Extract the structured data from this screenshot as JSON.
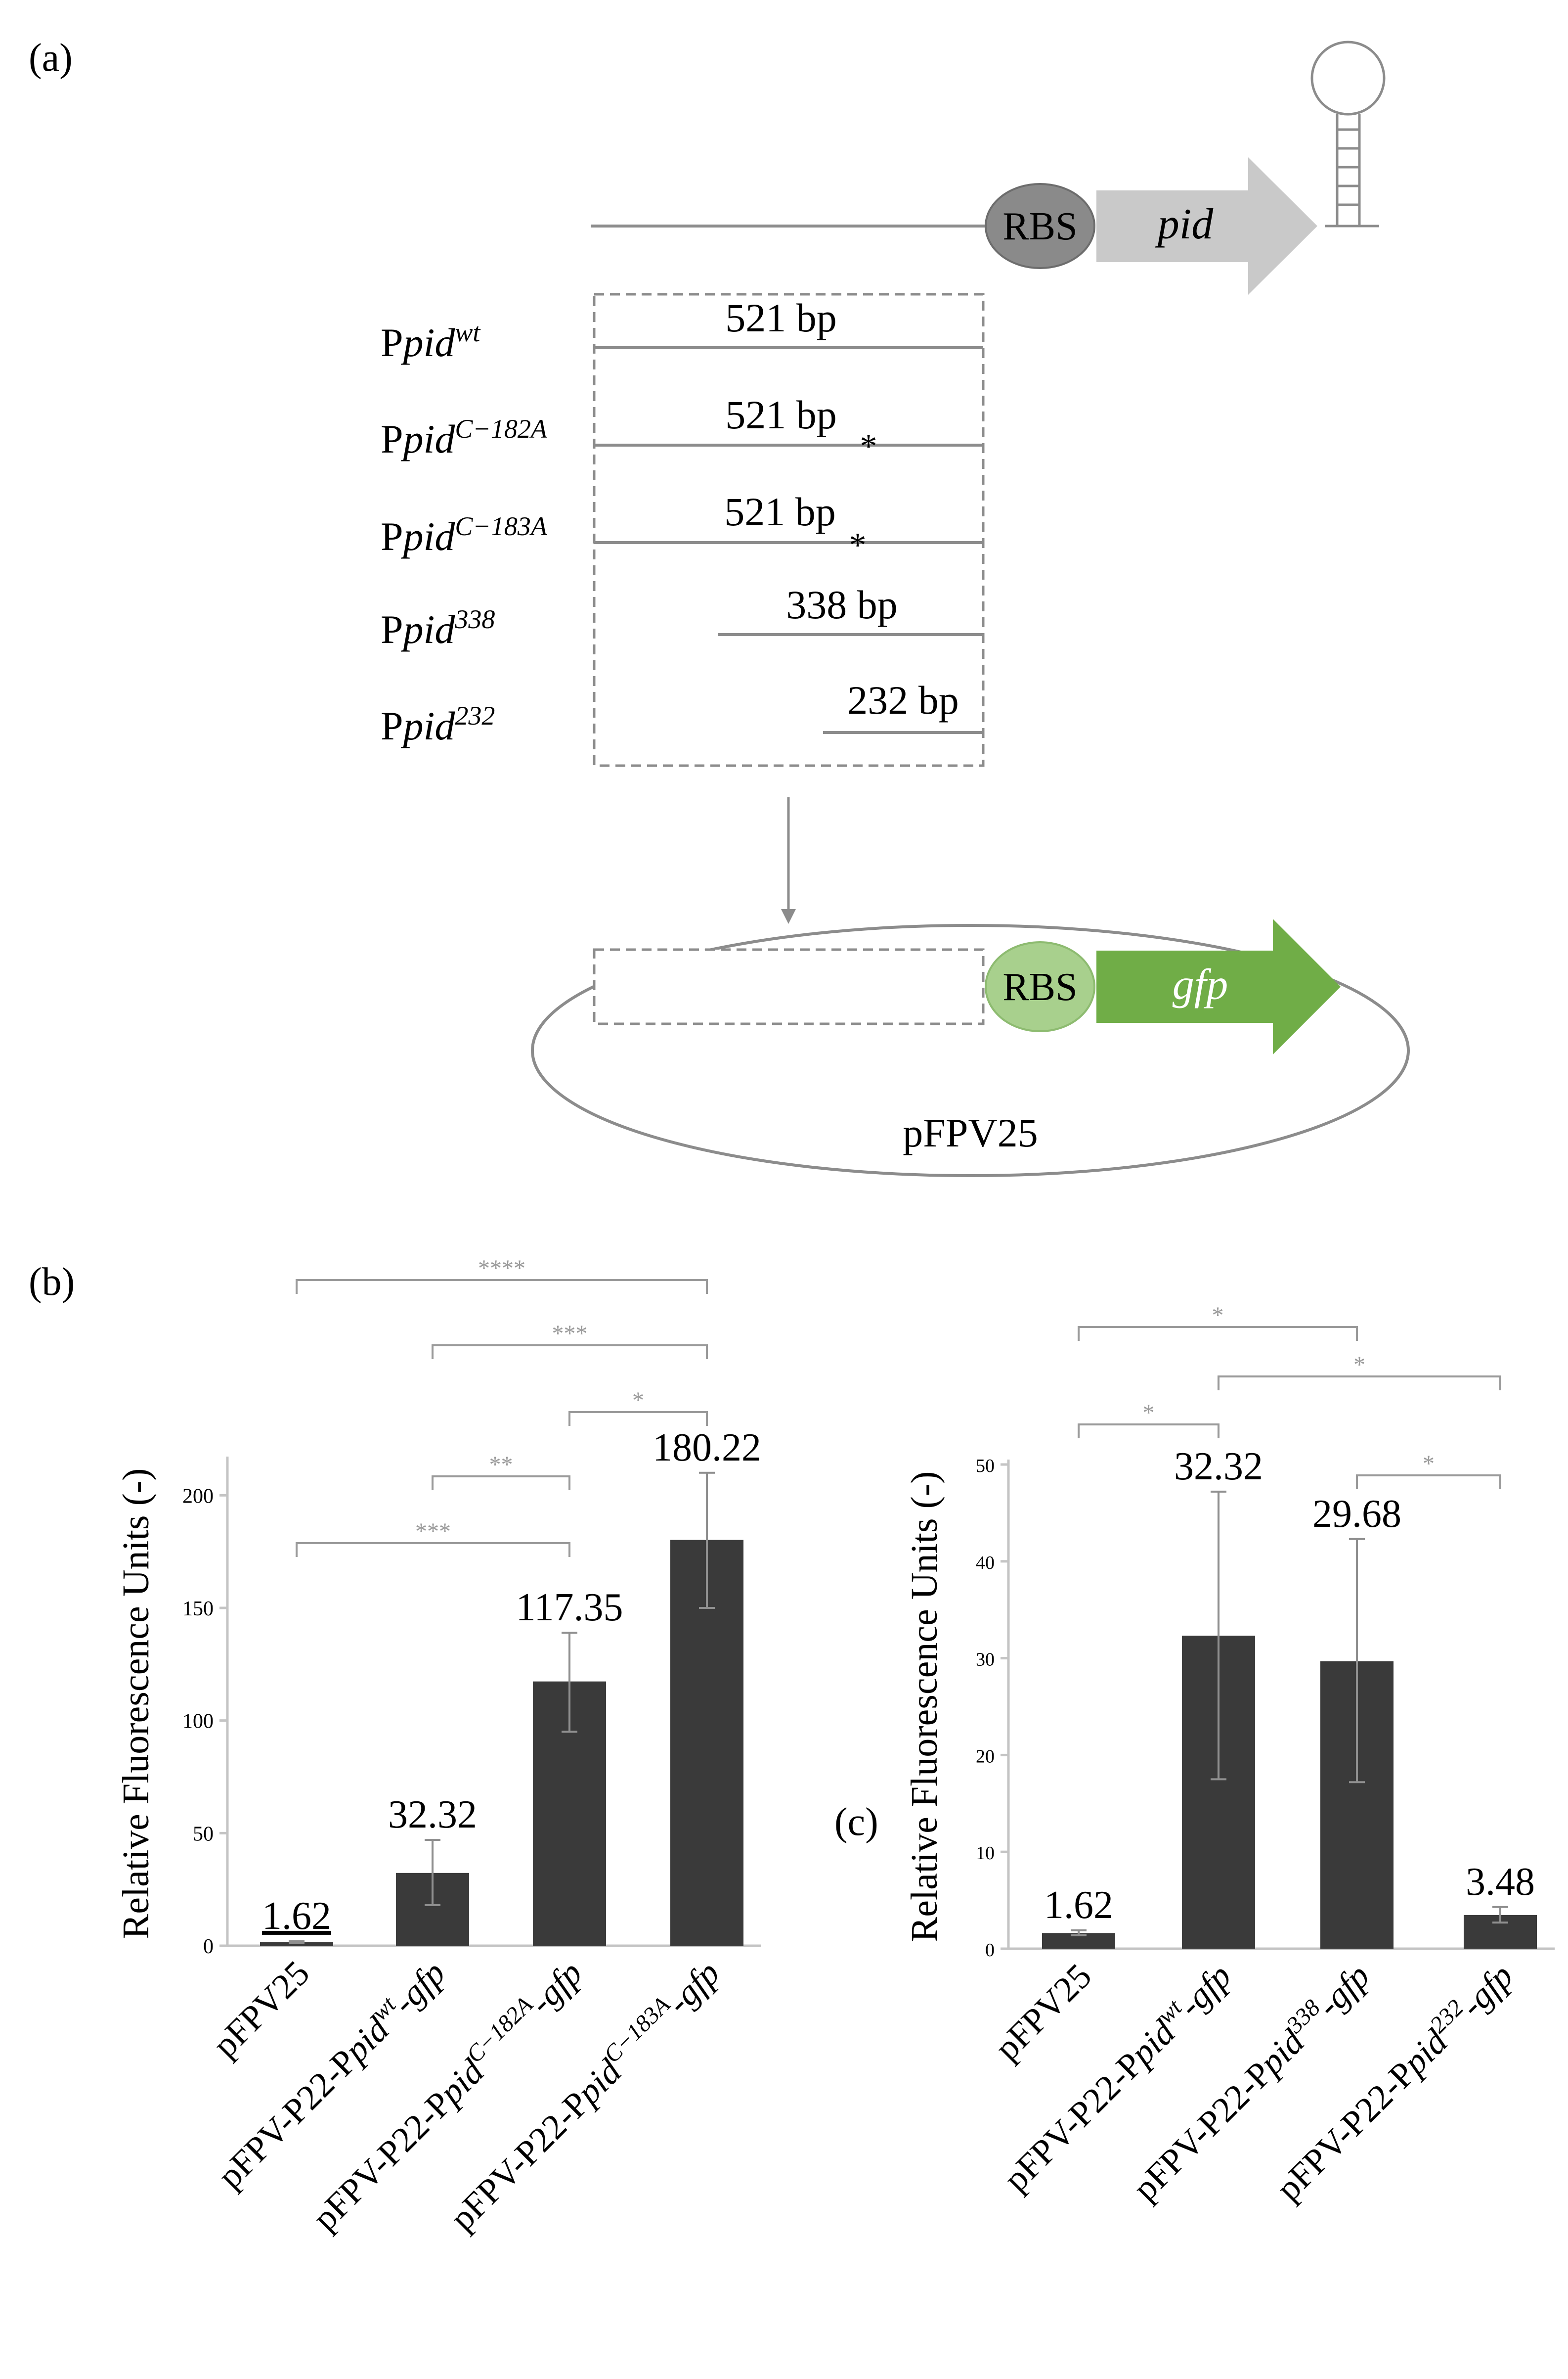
{
  "panels": {
    "a": "(a)",
    "b": "(b)",
    "c": "(c)"
  },
  "diagram": {
    "rbs_top": "RBS",
    "gene_top": "pid",
    "rbs_bottom": "RBS",
    "gene_bottom": "gfp",
    "plasmid": "pFPV25",
    "colors": {
      "rbs_top": "#8a8a8a",
      "gene_top": "#c9c9c9",
      "rbs_bottom": "#a8d08d",
      "gene_bottom": "#70ad47",
      "line": "#8c8c8c"
    },
    "fragments": [
      {
        "prefix": "P",
        "italic": "pid",
        "sup": "wt",
        "length": "521 bp",
        "mutation": ""
      },
      {
        "prefix": "P",
        "italic": "pid",
        "sup": "C−182A",
        "length": "521 bp",
        "mutation": "*"
      },
      {
        "prefix": "P",
        "italic": "pid",
        "sup": "C−183A",
        "length": "521 bp",
        "mutation": "*"
      },
      {
        "prefix": "P",
        "italic": "pid",
        "sup": "338",
        "length": "338 bp",
        "mutation": ""
      },
      {
        "prefix": "P",
        "italic": "pid",
        "sup": "232",
        "length": "232 bp",
        "mutation": ""
      }
    ]
  },
  "chart_data": [
    {
      "type": "bar",
      "panel": "(b)",
      "ylabel": "Relative Fluorescence Units (-)",
      "ylim": [
        0,
        215
      ],
      "yticks": [
        "0",
        "50",
        "100",
        "150",
        "200"
      ],
      "categories": [
        {
          "pre": "pFPV25",
          "ital": "",
          "sup": "",
          "post": ""
        },
        {
          "pre": "pFPV-P22-P",
          "ital": "pid",
          "sup": "wt",
          "post": "-gfp"
        },
        {
          "pre": "pFPV-P22-P",
          "ital": "pid",
          "sup": "C−182A",
          "post": "-gfp"
        },
        {
          "pre": "pFPV-P22-P",
          "ital": "pid",
          "sup": "C−183A",
          "post": "-gfp"
        }
      ],
      "values": [
        1.62,
        32.32,
        117.35,
        180.22
      ],
      "value_labels": [
        "1.62",
        "32.32",
        "117.35",
        "180.22"
      ],
      "error_low": [
        1.2,
        18.0,
        95.0,
        150.0
      ],
      "error_high": [
        2.0,
        47.0,
        139.0,
        210.0
      ],
      "significance": [
        {
          "from": 0,
          "to": 3,
          "label": "****"
        },
        {
          "from": 1,
          "to": 3,
          "label": "***"
        },
        {
          "from": 2,
          "to": 3,
          "label": "*"
        },
        {
          "from": 1,
          "to": 2,
          "label": "**"
        },
        {
          "from": 0,
          "to": 2,
          "label": "***"
        }
      ],
      "colors": {
        "bar": "#3a3a3a",
        "axis": "#c4c4c4",
        "sig": "#9a9a9a"
      }
    },
    {
      "type": "bar",
      "panel": "(c)",
      "ylabel": "Relative Fluorescence Units (-)",
      "ylim": [
        0,
        50
      ],
      "yticks": [
        "0",
        "10",
        "20",
        "30",
        "40",
        "50"
      ],
      "categories": [
        {
          "pre": "pFPV25",
          "ital": "",
          "sup": "",
          "post": ""
        },
        {
          "pre": "pFPV-P22-P",
          "ital": "pid",
          "sup": "wt",
          "post": "-gfp"
        },
        {
          "pre": "pFPV-P22-P",
          "ital": "pid",
          "sup": "338",
          "post": "-gfp"
        },
        {
          "pre": "pFPV-P22-P",
          "ital": "pid",
          "sup": "232",
          "post": "-gfp"
        }
      ],
      "values": [
        1.62,
        32.32,
        29.68,
        3.48
      ],
      "value_labels": [
        "1.62",
        "32.32",
        "29.68",
        "3.48"
      ],
      "error_low": [
        1.4,
        17.5,
        17.2,
        2.7
      ],
      "error_high": [
        1.9,
        47.2,
        42.3,
        4.3
      ],
      "significance": [
        {
          "from": 0,
          "to": 2,
          "label": "*"
        },
        {
          "from": 1,
          "to": 3,
          "label": "*"
        },
        {
          "from": 0,
          "to": 1,
          "label": "*"
        },
        {
          "from": 2,
          "to": 3,
          "label": "*"
        }
      ],
      "colors": {
        "bar": "#3a3a3a",
        "axis": "#c4c4c4",
        "sig": "#9a9a9a"
      }
    }
  ]
}
